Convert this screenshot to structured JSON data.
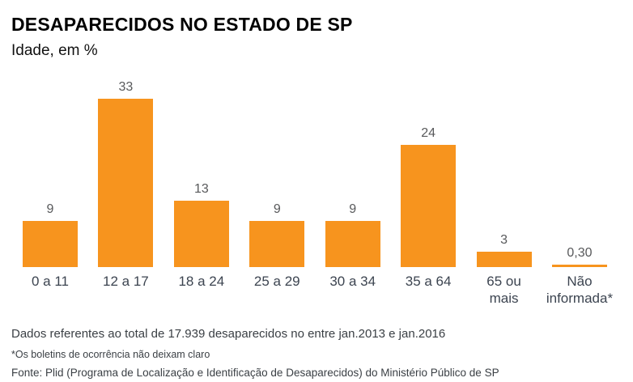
{
  "header": {
    "title": "DESAPARECIDOS NO ESTADO DE SP",
    "subtitle": "Idade, em %"
  },
  "chart_data": {
    "type": "bar",
    "title": "DESAPARECIDOS NO ESTADO DE SP",
    "subtitle": "Idade, em %",
    "categories": [
      "0 a 11",
      "12 a 17",
      "18 a 24",
      "25 a 29",
      "30 a 34",
      "35 a 64",
      "65 ou\nmais",
      "Não\ninformada*"
    ],
    "values": [
      9,
      33,
      13,
      9,
      9,
      24,
      3,
      0.3
    ],
    "value_labels": [
      "9",
      "33",
      "13",
      "9",
      "9",
      "24",
      "3",
      "0,30"
    ],
    "xlabel": "",
    "ylabel": "",
    "ylim": [
      0,
      33
    ],
    "grid": false,
    "legend": "none",
    "bar_color": "#F7941E"
  },
  "footer": {
    "note1": "Dados referentes ao total de 17.939 desaparecidos no entre jan.2013 e jan.2016",
    "note2": "*Os boletins de ocorrência não deixam claro",
    "source": "Fonte: Plid (Programa de Localização e Identificação de Desaparecidos) do Ministério Público de SP"
  },
  "colors": {
    "bar": "#F7941E",
    "value_label": "#58595B",
    "category_label": "#3C4450",
    "title": "#000000",
    "footer_text": "#3A3F44"
  }
}
